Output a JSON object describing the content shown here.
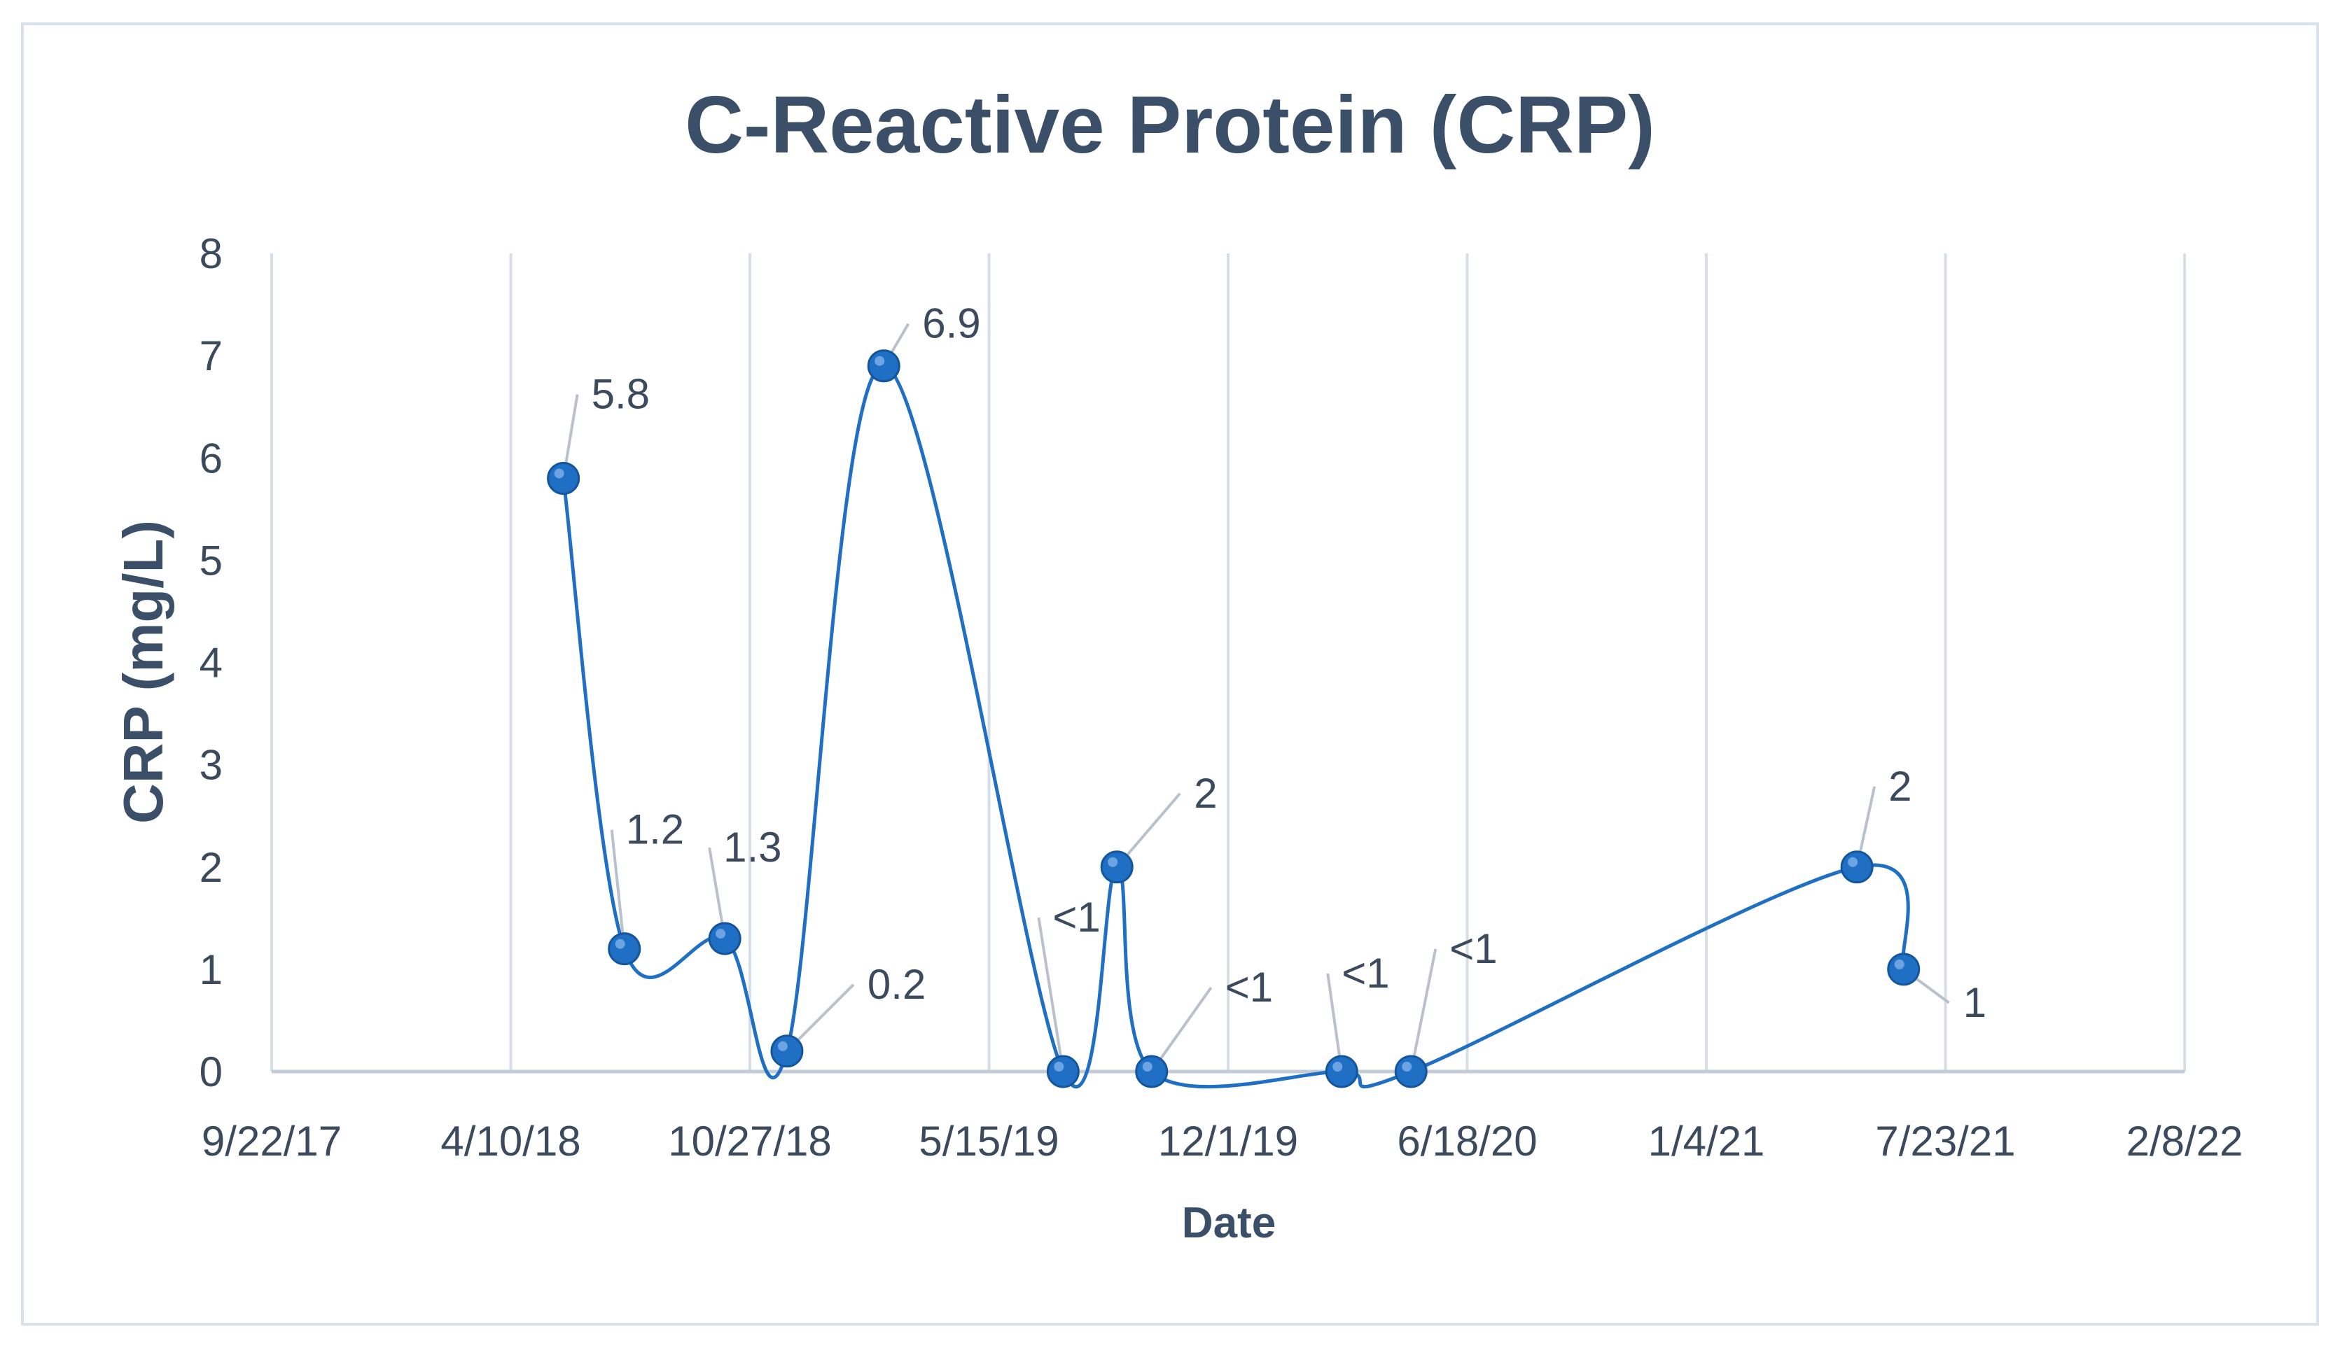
{
  "chart_data": {
    "type": "line",
    "title": "C-Reactive Protein (CRP)",
    "xlabel": "Date",
    "ylabel": "CRP  (mg/L)",
    "ylim": [
      0,
      8
    ],
    "yticks": [
      0,
      1,
      2,
      3,
      4,
      5,
      6,
      7,
      8
    ],
    "xlim": [
      "2017-09-22",
      "2022-02-08"
    ],
    "xticks": [
      {
        "date": "2017-09-22",
        "label": "9/22/17"
      },
      {
        "date": "2018-04-10",
        "label": "4/10/18"
      },
      {
        "date": "2018-10-27",
        "label": "10/27/18"
      },
      {
        "date": "2019-05-15",
        "label": "5/15/19"
      },
      {
        "date": "2019-12-01",
        "label": "12/1/19"
      },
      {
        "date": "2020-06-18",
        "label": "6/18/20"
      },
      {
        "date": "2021-01-04",
        "label": "1/4/21"
      },
      {
        "date": "2021-07-23",
        "label": "7/23/21"
      },
      {
        "date": "2022-02-08",
        "label": "2/8/22"
      }
    ],
    "grid": "vertical",
    "smooth": true,
    "color": "#1f6fc5",
    "series": [
      {
        "name": "CRP",
        "points": [
          {
            "date": "2018-05-24",
            "value": 5.8,
            "label": "5.8"
          },
          {
            "date": "2018-07-14",
            "value": 1.2,
            "label": "1.2"
          },
          {
            "date": "2018-10-06",
            "value": 1.3,
            "label": "1.3"
          },
          {
            "date": "2018-11-27",
            "value": 0.2,
            "label": "0.2"
          },
          {
            "date": "2019-02-16",
            "value": 6.9,
            "label": "6.9"
          },
          {
            "date": "2019-07-16",
            "value": 0,
            "label": "<1"
          },
          {
            "date": "2019-08-30",
            "value": 2,
            "label": "2"
          },
          {
            "date": "2019-09-28",
            "value": 0,
            "label": "<1"
          },
          {
            "date": "2020-03-05",
            "value": 0,
            "label": "<1"
          },
          {
            "date": "2020-05-02",
            "value": 0,
            "label": "<1"
          },
          {
            "date": "2021-05-10",
            "value": 2,
            "label": "2"
          },
          {
            "date": "2021-06-18",
            "value": 1,
            "label": "1"
          }
        ]
      }
    ]
  }
}
